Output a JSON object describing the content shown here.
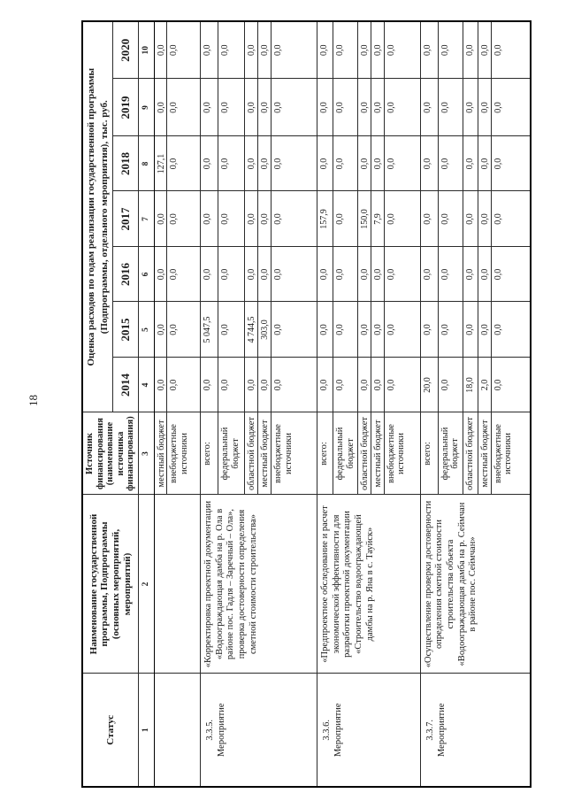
{
  "page_number": "18",
  "table": {
    "header": {
      "status": "Статус",
      "name": "Наименование государственной программы, Подпрограммы (основных мероприятий, мероприятий)",
      "source": "Источник финансирования (наименование источника финансирования)",
      "years_caption": "Оценка расходов по годам реализации государственной программы (Подпрограммы, отдельного мероприятия), тыс. руб.",
      "years": [
        "2014",
        "2015",
        "2016",
        "2017",
        "2018",
        "2019",
        "2020"
      ],
      "col_numbers": [
        "1",
        "2",
        "3",
        "4",
        "5",
        "6",
        "7",
        "8",
        "9",
        "10"
      ]
    },
    "groups": [
      {
        "status": "",
        "name": "",
        "rows": [
          {
            "source": "местный бюджет",
            "values": [
              "0,0",
              "0,0",
              "0,0",
              "0,0",
              "127,1",
              "0,0",
              "0,0"
            ]
          },
          {
            "source": "внебюджетные источники",
            "values": [
              "0,0",
              "0,0",
              "0,0",
              "0,0",
              "0,0",
              "0,0",
              "0,0"
            ]
          }
        ]
      },
      {
        "status": "3.3.5.\nМероприятие",
        "name": "«Корректировка проектной документации «Водоограждающая дамба на р. Ола в районе пос. Гадля – Заречный – Ола», проверка достоверности определения сметной стоимости строительства»",
        "rows": [
          {
            "source": "всего:",
            "values": [
              "0,0",
              "5 047,5",
              "0,0",
              "0,0",
              "0,0",
              "0,0",
              "0,0"
            ]
          },
          {
            "source": "федеральный бюджет",
            "values": [
              "0,0",
              "0,0",
              "0,0",
              "0,0",
              "0,0",
              "0,0",
              "0,0"
            ]
          },
          {
            "source": "областной бюджет",
            "values": [
              "0,0",
              "4 744,5",
              "0,0",
              "0,0",
              "0,0",
              "0,0",
              "0,0"
            ]
          },
          {
            "source": "местный бюджет",
            "values": [
              "0,0",
              "303,0",
              "0,0",
              "0,0",
              "0,0",
              "0,0",
              "0,0"
            ]
          },
          {
            "source": "внебюджетные источники",
            "values": [
              "0,0",
              "0,0",
              "0,0",
              "0,0",
              "0,0",
              "0,0",
              "0,0"
            ]
          }
        ]
      },
      {
        "status": "3.3.6.\nМероприятие",
        "name": "«Предпроектное обследование и расчет экономической эффективности для разработки проектной документации «Строительство водоограждающей дамбы на р. Яна в с. Тауйск»",
        "rows": [
          {
            "source": "всего:",
            "values": [
              "0,0",
              "0,0",
              "0,0",
              "157,9",
              "0,0",
              "0,0",
              "0,0"
            ]
          },
          {
            "source": "федеральный бюджет",
            "values": [
              "0,0",
              "0,0",
              "0,0",
              "0,0",
              "0,0",
              "0,0",
              "0,0"
            ]
          },
          {
            "source": "областной бюджет",
            "values": [
              "0,0",
              "0,0",
              "0,0",
              "150,0",
              "0,0",
              "0,0",
              "0,0"
            ]
          },
          {
            "source": "местный бюджет",
            "values": [
              "0,0",
              "0,0",
              "0,0",
              "7,9",
              "0,0",
              "0,0",
              "0,0"
            ]
          },
          {
            "source": "внебюджетные источники",
            "values": [
              "0,0",
              "0,0",
              "0,0",
              "0,0",
              "0,0",
              "0,0",
              "0,0"
            ]
          }
        ]
      },
      {
        "status": "3.3.7.\nМероприятие",
        "name": "«Осуществление проверки достоверности определения сметной стоимости строительства объекта «Водоограждающая дамба на р. Сеймчан в районе пос. Сеймчан»",
        "rows": [
          {
            "source": "всего:",
            "values": [
              "20,0",
              "0,0",
              "0,0",
              "0,0",
              "0,0",
              "0,0",
              "0,0"
            ]
          },
          {
            "source": "федеральный бюджет",
            "values": [
              "0,0",
              "0,0",
              "0,0",
              "0,0",
              "0,0",
              "0,0",
              "0,0"
            ]
          },
          {
            "source": "областной бюджет",
            "values": [
              "18,0",
              "0,0",
              "0,0",
              "0,0",
              "0,0",
              "0,0",
              "0,0"
            ]
          },
          {
            "source": "местный бюджет",
            "values": [
              "2,0",
              "0,0",
              "0,0",
              "0,0",
              "0,0",
              "0,0",
              "0,0"
            ]
          },
          {
            "source": "внебюджетные источники",
            "values": [
              "0,0",
              "0,0",
              "0,0",
              "0,0",
              "0,0",
              "0,0",
              "0,0"
            ]
          }
        ]
      }
    ]
  }
}
